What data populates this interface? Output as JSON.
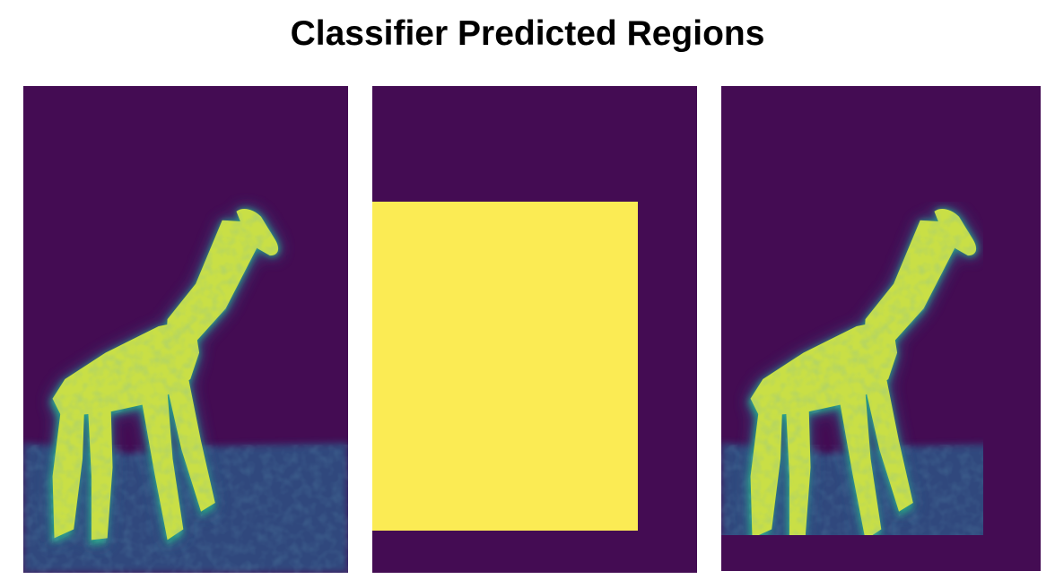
{
  "title": "Classifier Predicted Regions",
  "colormap": {
    "name": "viridis",
    "low": "#440c53",
    "mid_low": "#31688e",
    "mid": "#26a384",
    "mid_high": "#7ccf4e",
    "high": "#fbeb54"
  },
  "panels": [
    {
      "content": "giraffe-saliency-heatmap",
      "colormap": "viridis"
    },
    {
      "content": "predicted-region-box",
      "colormap": "viridis"
    },
    {
      "content": "giraffe-saliency-heatmap-masked",
      "colormap": "viridis"
    }
  ]
}
